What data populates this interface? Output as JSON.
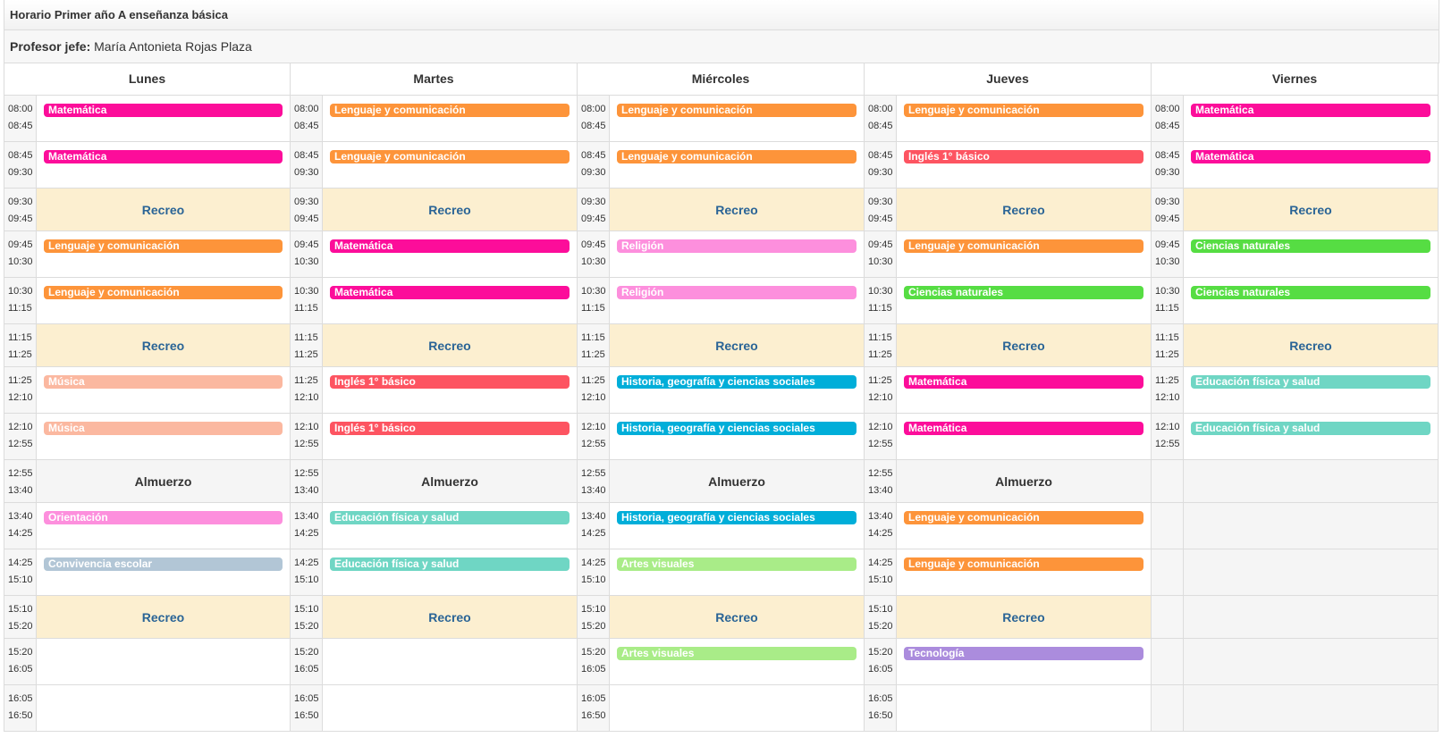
{
  "title": "Horario Primer año A enseñanza básica",
  "teacher": {
    "label": "Profesor jefe:",
    "name": "María Antonieta Rojas Plaza"
  },
  "colors": {
    "Matemática": "#fc0d9a",
    "Lenguaje y comunicación": "#fd943a",
    "Inglés 1° básico": "#fd5461",
    "Religión": "#fd8fdd",
    "Ciencias naturales": "#56dd43",
    "Música": "#fbb8a0",
    "Historia, geografía y ciencias sociales": "#00aed9",
    "Educación física y salud": "#6fd6c4",
    "Orientación": "#fd8fdd",
    "Convivencia escolar": "#b2c6d6",
    "Artes visuales": "#a9ec88",
    "Tecnología": "#ab8cdd"
  },
  "recreo_label": "Recreo",
  "almuerzo_label": "Almuerzo",
  "days": [
    {
      "name": "Lunes",
      "slots": [
        {
          "t1": "08:00",
          "t2": "08:45",
          "kind": "class",
          "subject": "Matemática"
        },
        {
          "t1": "08:45",
          "t2": "09:30",
          "kind": "class",
          "subject": "Matemática"
        },
        {
          "t1": "09:30",
          "t2": "09:45",
          "kind": "recreo"
        },
        {
          "t1": "09:45",
          "t2": "10:30",
          "kind": "class",
          "subject": "Lenguaje y comunicación"
        },
        {
          "t1": "10:30",
          "t2": "11:15",
          "kind": "class",
          "subject": "Lenguaje y comunicación"
        },
        {
          "t1": "11:15",
          "t2": "11:25",
          "kind": "recreo"
        },
        {
          "t1": "11:25",
          "t2": "12:10",
          "kind": "class",
          "subject": "Música"
        },
        {
          "t1": "12:10",
          "t2": "12:55",
          "kind": "class",
          "subject": "Música"
        },
        {
          "t1": "12:55",
          "t2": "13:40",
          "kind": "almuerzo"
        },
        {
          "t1": "13:40",
          "t2": "14:25",
          "kind": "class",
          "subject": "Orientación"
        },
        {
          "t1": "14:25",
          "t2": "15:10",
          "kind": "class",
          "subject": "Convivencia escolar"
        },
        {
          "t1": "15:10",
          "t2": "15:20",
          "kind": "recreo"
        },
        {
          "t1": "15:20",
          "t2": "16:05",
          "kind": "empty"
        },
        {
          "t1": "16:05",
          "t2": "16:50",
          "kind": "empty"
        }
      ]
    },
    {
      "name": "Martes",
      "slots": [
        {
          "t1": "08:00",
          "t2": "08:45",
          "kind": "class",
          "subject": "Lenguaje y comunicación"
        },
        {
          "t1": "08:45",
          "t2": "09:30",
          "kind": "class",
          "subject": "Lenguaje y comunicación"
        },
        {
          "t1": "09:30",
          "t2": "09:45",
          "kind": "recreo"
        },
        {
          "t1": "09:45",
          "t2": "10:30",
          "kind": "class",
          "subject": "Matemática"
        },
        {
          "t1": "10:30",
          "t2": "11:15",
          "kind": "class",
          "subject": "Matemática"
        },
        {
          "t1": "11:15",
          "t2": "11:25",
          "kind": "recreo"
        },
        {
          "t1": "11:25",
          "t2": "12:10",
          "kind": "class",
          "subject": "Inglés 1° básico"
        },
        {
          "t1": "12:10",
          "t2": "12:55",
          "kind": "class",
          "subject": "Inglés 1° básico"
        },
        {
          "t1": "12:55",
          "t2": "13:40",
          "kind": "almuerzo"
        },
        {
          "t1": "13:40",
          "t2": "14:25",
          "kind": "class",
          "subject": "Educación física y salud"
        },
        {
          "t1": "14:25",
          "t2": "15:10",
          "kind": "class",
          "subject": "Educación física y salud"
        },
        {
          "t1": "15:10",
          "t2": "15:20",
          "kind": "recreo"
        },
        {
          "t1": "15:20",
          "t2": "16:05",
          "kind": "empty"
        },
        {
          "t1": "16:05",
          "t2": "16:50",
          "kind": "empty"
        }
      ]
    },
    {
      "name": "Miércoles",
      "slots": [
        {
          "t1": "08:00",
          "t2": "08:45",
          "kind": "class",
          "subject": "Lenguaje y comunicación"
        },
        {
          "t1": "08:45",
          "t2": "09:30",
          "kind": "class",
          "subject": "Lenguaje y comunicación"
        },
        {
          "t1": "09:30",
          "t2": "09:45",
          "kind": "recreo"
        },
        {
          "t1": "09:45",
          "t2": "10:30",
          "kind": "class",
          "subject": "Religión"
        },
        {
          "t1": "10:30",
          "t2": "11:15",
          "kind": "class",
          "subject": "Religión"
        },
        {
          "t1": "11:15",
          "t2": "11:25",
          "kind": "recreo"
        },
        {
          "t1": "11:25",
          "t2": "12:10",
          "kind": "class",
          "subject": "Historia, geografía y ciencias sociales"
        },
        {
          "t1": "12:10",
          "t2": "12:55",
          "kind": "class",
          "subject": "Historia, geografía y ciencias sociales"
        },
        {
          "t1": "12:55",
          "t2": "13:40",
          "kind": "almuerzo"
        },
        {
          "t1": "13:40",
          "t2": "14:25",
          "kind": "class",
          "subject": "Historia, geografía y ciencias sociales"
        },
        {
          "t1": "14:25",
          "t2": "15:10",
          "kind": "class",
          "subject": "Artes visuales"
        },
        {
          "t1": "15:10",
          "t2": "15:20",
          "kind": "recreo"
        },
        {
          "t1": "15:20",
          "t2": "16:05",
          "kind": "class",
          "subject": "Artes visuales"
        },
        {
          "t1": "16:05",
          "t2": "16:50",
          "kind": "empty"
        }
      ]
    },
    {
      "name": "Jueves",
      "slots": [
        {
          "t1": "08:00",
          "t2": "08:45",
          "kind": "class",
          "subject": "Lenguaje y comunicación"
        },
        {
          "t1": "08:45",
          "t2": "09:30",
          "kind": "class",
          "subject": "Inglés 1° básico"
        },
        {
          "t1": "09:30",
          "t2": "09:45",
          "kind": "recreo"
        },
        {
          "t1": "09:45",
          "t2": "10:30",
          "kind": "class",
          "subject": "Lenguaje y comunicación"
        },
        {
          "t1": "10:30",
          "t2": "11:15",
          "kind": "class",
          "subject": "Ciencias naturales"
        },
        {
          "t1": "11:15",
          "t2": "11:25",
          "kind": "recreo"
        },
        {
          "t1": "11:25",
          "t2": "12:10",
          "kind": "class",
          "subject": "Matemática"
        },
        {
          "t1": "12:10",
          "t2": "12:55",
          "kind": "class",
          "subject": "Matemática"
        },
        {
          "t1": "12:55",
          "t2": "13:40",
          "kind": "almuerzo"
        },
        {
          "t1": "13:40",
          "t2": "14:25",
          "kind": "class",
          "subject": "Lenguaje y comunicación"
        },
        {
          "t1": "14:25",
          "t2": "15:10",
          "kind": "class",
          "subject": "Lenguaje y comunicación"
        },
        {
          "t1": "15:10",
          "t2": "15:20",
          "kind": "recreo"
        },
        {
          "t1": "15:20",
          "t2": "16:05",
          "kind": "class",
          "subject": "Tecnología"
        },
        {
          "t1": "16:05",
          "t2": "16:50",
          "kind": "empty"
        }
      ]
    },
    {
      "name": "Viernes",
      "slots": [
        {
          "t1": "08:00",
          "t2": "08:45",
          "kind": "class",
          "subject": "Matemática"
        },
        {
          "t1": "08:45",
          "t2": "09:30",
          "kind": "class",
          "subject": "Matemática"
        },
        {
          "t1": "09:30",
          "t2": "09:45",
          "kind": "recreo"
        },
        {
          "t1": "09:45",
          "t2": "10:30",
          "kind": "class",
          "subject": "Ciencias naturales"
        },
        {
          "t1": "10:30",
          "t2": "11:15",
          "kind": "class",
          "subject": "Ciencias naturales"
        },
        {
          "t1": "11:15",
          "t2": "11:25",
          "kind": "recreo"
        },
        {
          "t1": "11:25",
          "t2": "12:10",
          "kind": "class",
          "subject": "Educación física y salud"
        },
        {
          "t1": "12:10",
          "t2": "12:55",
          "kind": "class",
          "subject": "Educación física y salud"
        },
        {
          "t1": "",
          "t2": "",
          "kind": "gray"
        },
        {
          "t1": "",
          "t2": "",
          "kind": "gray"
        },
        {
          "t1": "",
          "t2": "",
          "kind": "gray"
        },
        {
          "t1": "",
          "t2": "",
          "kind": "gray"
        },
        {
          "t1": "",
          "t2": "",
          "kind": "gray"
        },
        {
          "t1": "",
          "t2": "",
          "kind": "gray"
        }
      ]
    }
  ]
}
